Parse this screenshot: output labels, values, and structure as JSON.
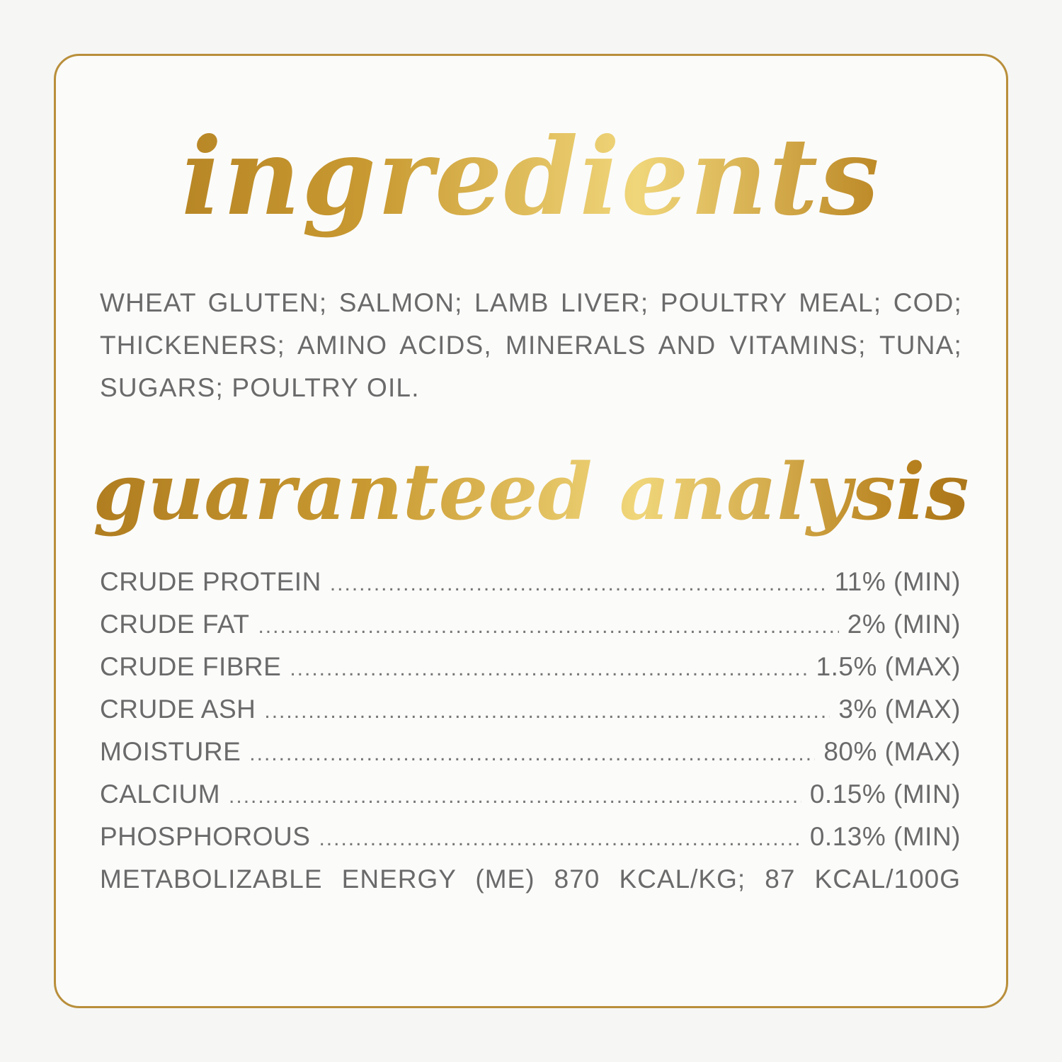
{
  "titles": {
    "ingredients": "ingredients",
    "analysis": "guaranteed analysis"
  },
  "ingredients_text": "WHEAT GLUTEN; SALMON; LAMB LIVER; POULTRY MEAL; COD; THICKENERS; AMINO ACIDS, MINERALS AND VITAMINS; TUNA; SUGARS; POULTRY OIL.",
  "analysis": [
    {
      "label": "CRUDE PROTEIN",
      "value": "11% (MIN)"
    },
    {
      "label": "CRUDE FAT",
      "value": "2% (MIN)"
    },
    {
      "label": "CRUDE FIBRE",
      "value": "1.5% (MAX)"
    },
    {
      "label": "CRUDE ASH",
      "value": "3% (MAX)"
    },
    {
      "label": "MOISTURE",
      "value": "80% (MAX)"
    },
    {
      "label": "CALCIUM",
      "value": "0.15% (MIN)"
    },
    {
      "label": "PHOSPHOROUS",
      "value": "0.13% (MIN)"
    }
  ],
  "energy": "METABOLIZABLE ENERGY (ME) 870 KCAL/KG; 87 KCAL/100G",
  "colors": {
    "gold": "#b98f3b",
    "text": "#6a6a6a"
  }
}
